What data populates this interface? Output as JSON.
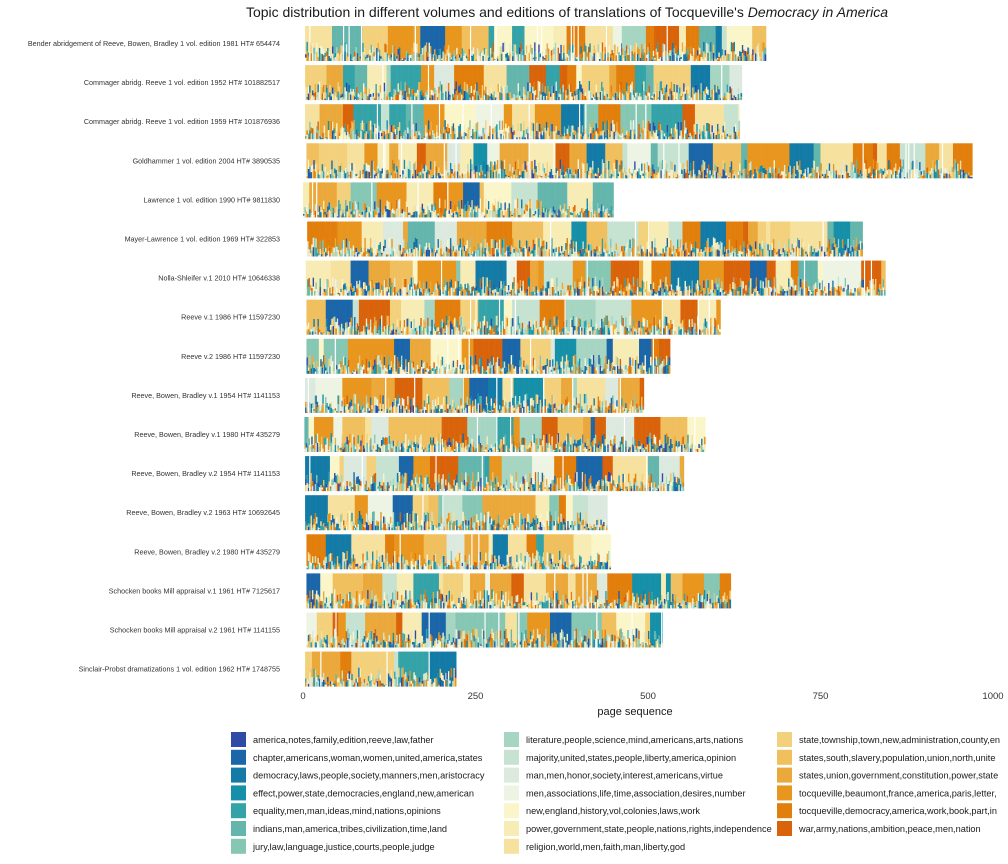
{
  "chart_data": {
    "type": "bar",
    "subtype": "stacked-area-strips",
    "title": "Topic distribution in different volumes and editions of translations of Tocqueville's",
    "title_emphasis": "Democracy in America",
    "xlabel": "page sequence",
    "ylabel": "",
    "xlim": [
      0,
      1000
    ],
    "xticks": [
      0,
      250,
      500,
      750,
      1000
    ],
    "grid": false,
    "legend_position": "bottom",
    "rows": [
      {
        "label": "Bender abridgement of Reeve, Bowen, Bradley 1 vol. edition 1981 HT# 654474",
        "start": 3,
        "pages": 668,
        "seed": 11
      },
      {
        "label": "Commager abridg. Reeve 1 vol. edition 1952 HT# 101882517",
        "start": 3,
        "pages": 632,
        "seed": 23
      },
      {
        "label": "Commager abridg. Reeve 1 vol. edition 1959 HT# 101876936",
        "start": 3,
        "pages": 630,
        "seed": 37
      },
      {
        "label": "Goldhammer 1 vol. edition 2004 HT# 3890535",
        "start": 5,
        "pages": 965,
        "seed": 41
      },
      {
        "label": "Lawrence 1 vol. edition 1990 HT# 9811830",
        "start": 0,
        "pages": 450,
        "seed": 53
      },
      {
        "label": "Mayer-Lawrence 1 vol. edition 1969 HT# 322853",
        "start": 6,
        "pages": 805,
        "seed": 61
      },
      {
        "label": "Nolla-Shleifer v.1 2010 HT# 10646338",
        "start": 4,
        "pages": 840,
        "seed": 71
      },
      {
        "label": "Reeve v.1 1986 HT# 11597230",
        "start": 5,
        "pages": 600,
        "seed": 83
      },
      {
        "label": "Reeve v.2 1986 HT# 11597230",
        "start": 5,
        "pages": 526,
        "seed": 97
      },
      {
        "label": "Reeve, Bowen, Bradley v.1 1954 HT# 1141153",
        "start": 3,
        "pages": 490,
        "seed": 101
      },
      {
        "label": "Reeve, Bowen, Bradley v.1 1980 HT# 435279",
        "start": 2,
        "pages": 580,
        "seed": 113
      },
      {
        "label": "Reeve, Bowen, Bradley v.2 1954 HT# 1141153",
        "start": 3,
        "pages": 548,
        "seed": 127
      },
      {
        "label": "Reeve, Bowen, Bradley v.2 1963 HT# 10692645",
        "start": 3,
        "pages": 438,
        "seed": 131
      },
      {
        "label": "Reeve, Bowen, Bradley v.2 1980 HT# 435279",
        "start": 5,
        "pages": 440,
        "seed": 139
      },
      {
        "label": "Schocken books Mill appraisal v.1 1961 HT# 7125617",
        "start": 5,
        "pages": 615,
        "seed": 149
      },
      {
        "label": "Schocken books Mill appraisal v.2 1961 HT# 1141155",
        "start": 5,
        "pages": 515,
        "seed": 157
      },
      {
        "label": "Sinclair-Probst dramatizations 1 vol. edition 1962 HT# 1748755",
        "start": 3,
        "pages": 218,
        "seed": 163
      }
    ],
    "series": [
      {
        "name": "america,notes,family,edition,reeve,law,father",
        "color": "#2f4ba6"
      },
      {
        "name": "chapter,americans,woman,women,united,america,states",
        "color": "#1a66a8"
      },
      {
        "name": "democracy,laws,people,society,manners,men,aristocracy",
        "color": "#137ba6"
      },
      {
        "name": "effect,power,state,democracies,england,new,american",
        "color": "#1590a8"
      },
      {
        "name": "equality,men,man,ideas,mind,nations,opinions",
        "color": "#34a3a8"
      },
      {
        "name": "indians,man,america,tribes,civilization,time,land",
        "color": "#64b6ad"
      },
      {
        "name": "jury,law,language,justice,courts,people,judge",
        "color": "#86c7b4"
      },
      {
        "name": "literature,people,science,mind,americans,arts,nations",
        "color": "#a6d5c2"
      },
      {
        "name": "majority,united,states,people,liberty,america,opinion",
        "color": "#c6e2d1"
      },
      {
        "name": "man,men,honor,society,interest,americans,virtue",
        "color": "#dce9df"
      },
      {
        "name": "men,associations,life,time,association,desires,number",
        "color": "#eef4e4"
      },
      {
        "name": "new,england,history,vol,colonies,laws,work",
        "color": "#fbf6c9"
      },
      {
        "name": "power,government,state,people,nations,rights,independence",
        "color": "#f8ecb5"
      },
      {
        "name": "religion,world,men,faith,man,liberty,god",
        "color": "#f6e19e"
      },
      {
        "name": "state,township,town,new,administration,county,en",
        "color": "#f3d17c"
      },
      {
        "name": "states,south,slavery,population,union,north,unite",
        "color": "#f0bf5e"
      },
      {
        "name": "states,union,government,constitution,power,state",
        "color": "#eba83b"
      },
      {
        "name": "tocqueville,beaumont,france,america,paris,letter,",
        "color": "#e8961e"
      },
      {
        "name": "tocqueville,democracy,america,work,book,part,in",
        "color": "#e27f0c"
      },
      {
        "name": "war,army,nations,ambition,peace,men,nation",
        "color": "#d9630a"
      }
    ]
  }
}
